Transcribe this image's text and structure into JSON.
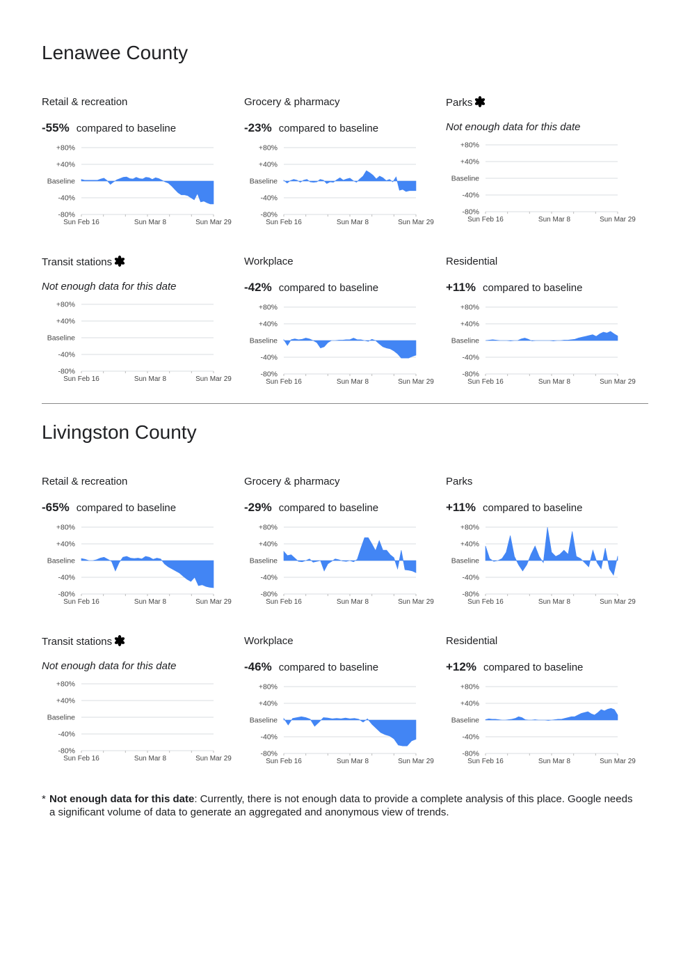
{
  "footnote": {
    "asterisk": "*",
    "term": "Not enough data for this date",
    "text": ": Currently, there is not enough data to provide a complete analysis of this place. Google needs a significant volume of data to generate an aggregated and anonymous view of trends."
  },
  "chart_data": [
    {
      "county": "Lenawee County",
      "type": "area",
      "x_ticks": [
        "Sun Feb 16",
        "Sun Mar 8",
        "Sun Mar 29"
      ],
      "y_ticks": [
        "+80%",
        "+40%",
        "Baseline",
        "-40%",
        "-80%"
      ],
      "ylim": [
        -80,
        80
      ],
      "color": "#4285f4",
      "panels": [
        {
          "title": "Retail & recreation",
          "value": "-55%",
          "compare": "compared to baseline",
          "no_data": false,
          "values": [
            4,
            2,
            2,
            2,
            2,
            2,
            5,
            7,
            1,
            -8,
            -2,
            3,
            6,
            9,
            10,
            6,
            5,
            9,
            6,
            5,
            9,
            8,
            4,
            8,
            6,
            2,
            -2,
            -5,
            -12,
            -20,
            -28,
            -33,
            -33,
            -35,
            -40,
            -45,
            -30,
            -50,
            -48,
            -52,
            -55,
            -55
          ]
        },
        {
          "title": "Grocery & pharmacy",
          "value": "-23%",
          "compare": "compared to baseline",
          "no_data": false,
          "values": [
            2,
            -5,
            1,
            4,
            2,
            -3,
            2,
            4,
            -2,
            -3,
            -2,
            4,
            2,
            -6,
            -2,
            -3,
            3,
            8,
            2,
            5,
            7,
            1,
            -3,
            5,
            12,
            25,
            20,
            14,
            5,
            12,
            8,
            1,
            4,
            -2,
            10,
            -22,
            -20,
            -25,
            -23,
            -23,
            -23
          ]
        },
        {
          "title": "Parks",
          "value": "",
          "compare": "",
          "no_data": true,
          "no_data_text": "Not enough data for this date",
          "values": []
        },
        {
          "title": "Transit stations",
          "value": "",
          "compare": "",
          "no_data": true,
          "no_data_text": "Not enough data for this date",
          "values": []
        },
        {
          "title": "Workplace",
          "value": "-42%",
          "compare": "compared to baseline",
          "no_data": false,
          "values": [
            2,
            -12,
            2,
            4,
            2,
            3,
            6,
            4,
            0,
            -5,
            -18,
            -15,
            -5,
            0,
            0,
            1,
            1,
            2,
            2,
            6,
            2,
            2,
            0,
            -2,
            3,
            0,
            -8,
            -15,
            -18,
            -20,
            -25,
            -32,
            -42,
            -42,
            -42,
            -38,
            -35
          ]
        },
        {
          "title": "Residential",
          "value": "+11%",
          "compare": "compared to baseline",
          "no_data": false,
          "values": [
            0,
            1,
            2,
            1,
            0,
            0,
            0,
            -1,
            0,
            0,
            4,
            6,
            3,
            -1,
            0,
            0,
            0,
            0,
            0,
            -1,
            0,
            0,
            1,
            1,
            2,
            3,
            6,
            8,
            10,
            12,
            14,
            10,
            16,
            20,
            18,
            22,
            16,
            11
          ]
        }
      ]
    },
    {
      "county": "Livingston County",
      "type": "area",
      "x_ticks": [
        "Sun Feb 16",
        "Sun Mar 8",
        "Sun Mar 29"
      ],
      "y_ticks": [
        "+80%",
        "+40%",
        "Baseline",
        "-40%",
        "-80%"
      ],
      "ylim": [
        -80,
        80
      ],
      "color": "#4285f4",
      "panels": [
        {
          "title": "Retail & recreation",
          "value": "-65%",
          "compare": "compared to baseline",
          "no_data": false,
          "values": [
            5,
            3,
            0,
            0,
            2,
            6,
            8,
            3,
            -2,
            -25,
            -5,
            8,
            10,
            6,
            5,
            6,
            4,
            10,
            8,
            3,
            6,
            4,
            -8,
            -15,
            -20,
            -25,
            -30,
            -38,
            -45,
            -50,
            -40,
            -60,
            -58,
            -62,
            -64,
            -65
          ]
        },
        {
          "title": "Grocery & pharmacy",
          "value": "-29%",
          "compare": "compared to baseline",
          "no_data": false,
          "values": [
            22,
            12,
            14,
            6,
            -2,
            -3,
            0,
            4,
            -4,
            -2,
            0,
            -25,
            -8,
            -2,
            4,
            2,
            -1,
            -2,
            0,
            -3,
            3,
            30,
            55,
            55,
            40,
            24,
            48,
            25,
            25,
            14,
            7,
            -20,
            25,
            -22,
            -23,
            -25,
            -29
          ]
        },
        {
          "title": "Parks",
          "value": "+11%",
          "compare": "compared to baseline",
          "no_data": false,
          "values": [
            35,
            5,
            -2,
            0,
            5,
            20,
            60,
            10,
            -10,
            -25,
            -10,
            15,
            35,
            10,
            -5,
            80,
            20,
            10,
            15,
            25,
            15,
            70,
            10,
            5,
            -5,
            -15,
            25,
            -5,
            -20,
            30,
            -20,
            -35,
            11
          ]
        },
        {
          "title": "Transit stations",
          "value": "",
          "compare": "",
          "no_data": true,
          "no_data_text": "Not enough data for this date",
          "values": []
        },
        {
          "title": "Workplace",
          "value": "-46%",
          "compare": "compared to baseline",
          "no_data": false,
          "values": [
            4,
            -12,
            4,
            6,
            8,
            6,
            2,
            -15,
            -5,
            6,
            5,
            3,
            4,
            3,
            5,
            3,
            4,
            2,
            -5,
            3,
            -10,
            -20,
            -30,
            -35,
            -38,
            -45,
            -60,
            -62,
            -62,
            -50,
            -46
          ]
        },
        {
          "title": "Residential",
          "value": "+12%",
          "compare": "compared to baseline",
          "no_data": false,
          "values": [
            1,
            3,
            2,
            2,
            1,
            0,
            0,
            1,
            2,
            4,
            8,
            6,
            1,
            0,
            0,
            1,
            0,
            0,
            0,
            -1,
            0,
            1,
            2,
            2,
            4,
            6,
            8,
            8,
            12,
            16,
            18,
            20,
            15,
            12,
            18,
            25,
            22,
            26,
            28,
            25,
            12
          ]
        }
      ]
    }
  ]
}
